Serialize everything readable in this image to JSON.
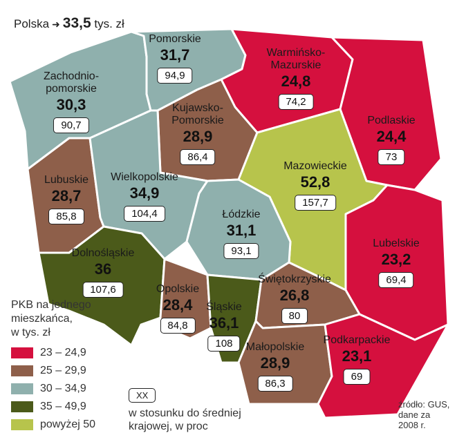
{
  "national": {
    "label": "Polska",
    "value": "33,5",
    "unit": "tys. zł"
  },
  "legend": {
    "title": "PKB na jednego\nmieszkańca,\nw tys. zł",
    "items": [
      {
        "label": "23 – 24,9",
        "color": "#d5103e"
      },
      {
        "label": "25 – 29,9",
        "color": "#8e5f4a"
      },
      {
        "label": "30 – 34,9",
        "color": "#8fb0ad"
      },
      {
        "label": "35 – 49,9",
        "color": "#4b5a1a"
      },
      {
        "label": "powyżej 50",
        "color": "#b7c44c"
      }
    ]
  },
  "index_key": {
    "box": "XX",
    "description": "w stosunku do średniej\nkrajowej, w proc"
  },
  "source": "źródło: GUS,\ndane za\n2008 r.",
  "regions": [
    {
      "name": "Pomorskie",
      "value": "31,7",
      "index": "94,9",
      "color": "#8fb0ad"
    },
    {
      "name": "Zachodnio-\npomorskie",
      "value": "30,3",
      "index": "90,7",
      "color": "#8fb0ad"
    },
    {
      "name": "Warmińsko-\nMazurskie",
      "value": "24,8",
      "index": "74,2",
      "color": "#d5103e"
    },
    {
      "name": "Kujawsko-\nPomorskie",
      "value": "28,9",
      "index": "86,4",
      "color": "#8e5f4a"
    },
    {
      "name": "Podlaskie",
      "value": "24,4",
      "index": "73",
      "color": "#d5103e"
    },
    {
      "name": "Lubuskie",
      "value": "28,7",
      "index": "85,8",
      "color": "#8e5f4a"
    },
    {
      "name": "Wielkopolskie",
      "value": "34,9",
      "index": "104,4",
      "color": "#8fb0ad"
    },
    {
      "name": "Mazowieckie",
      "value": "52,8",
      "index": "157,7",
      "color": "#b7c44c"
    },
    {
      "name": "Łódzkie",
      "value": "31,1",
      "index": "93,1",
      "color": "#8fb0ad"
    },
    {
      "name": "Lubelskie",
      "value": "23,2",
      "index": "69,4",
      "color": "#d5103e"
    },
    {
      "name": "Dolnośląskie",
      "value": "36",
      "index": "107,6",
      "color": "#4b5a1a"
    },
    {
      "name": "Opolskie",
      "value": "28,4",
      "index": "84,8",
      "color": "#8e5f4a"
    },
    {
      "name": "Śląskie",
      "value": "36,1",
      "index": "108",
      "color": "#4b5a1a"
    },
    {
      "name": "Świętokrzyskie",
      "value": "26,8",
      "index": "80",
      "color": "#8e5f4a"
    },
    {
      "name": "Małopolskie",
      "value": "28,9",
      "index": "86,3",
      "color": "#8e5f4a"
    },
    {
      "name": "Podkarpackie",
      "value": "23,1",
      "index": "69",
      "color": "#d5103e"
    }
  ]
}
